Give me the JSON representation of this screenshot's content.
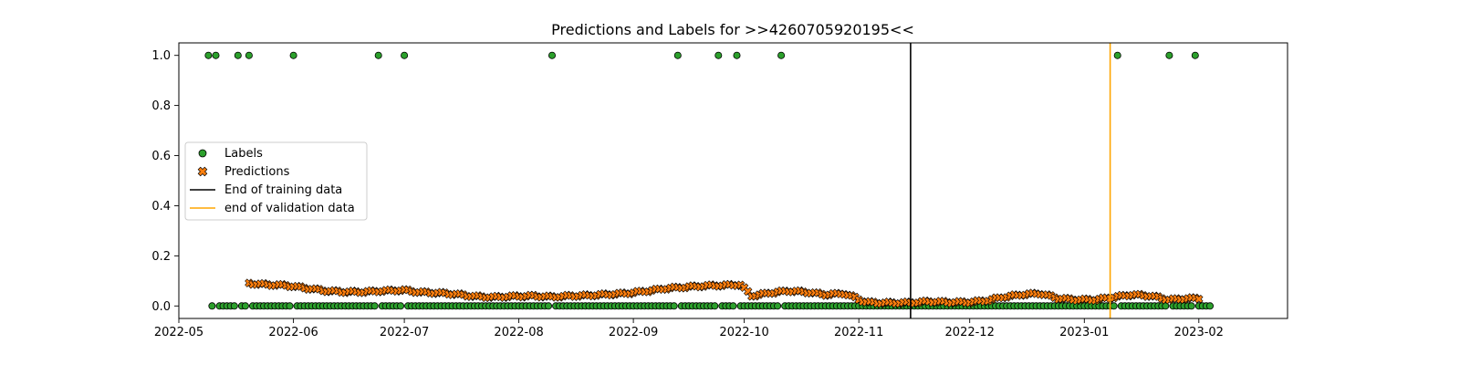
{
  "chart_data": {
    "type": "scatter",
    "title": "Predictions and Labels for >>4260705920195<<",
    "xlabel": "",
    "ylabel": "",
    "xlim": [
      "2022-05-01",
      "2023-02-25"
    ],
    "ylim": [
      -0.05,
      1.05
    ],
    "x_ticks": [
      "2022-05",
      "2022-06",
      "2022-07",
      "2022-08",
      "2022-09",
      "2022-10",
      "2022-11",
      "2022-12",
      "2023-01",
      "2023-02"
    ],
    "y_ticks": [
      "0.0",
      "0.2",
      "0.4",
      "0.6",
      "0.8",
      "1.0"
    ],
    "grid": false,
    "legend_position": "center-left",
    "series": [
      {
        "name": "Labels",
        "marker": "circle",
        "color": "#2ca02c",
        "edge_color": "#000000",
        "date_range": [
          "2022-05-10",
          "2023-02-04"
        ],
        "baseline_value": 0.0,
        "positive_dates": [
          "2022-05-09",
          "2022-05-11",
          "2022-05-17",
          "2022-05-20",
          "2022-06-01",
          "2022-06-24",
          "2022-07-01",
          "2022-08-10",
          "2022-09-13",
          "2022-09-24",
          "2022-09-29",
          "2022-10-11",
          "2023-01-10",
          "2023-01-24",
          "2023-01-31"
        ]
      },
      {
        "name": "Predictions",
        "marker": "x-filled",
        "color": "#ff7f0e",
        "edge_color": "#000000",
        "points": [
          [
            "2022-05-20",
            0.09
          ],
          [
            "2022-05-25",
            0.085
          ],
          [
            "2022-05-30",
            0.082
          ],
          [
            "2022-06-05",
            0.07
          ],
          [
            "2022-06-10",
            0.06
          ],
          [
            "2022-06-15",
            0.056
          ],
          [
            "2022-06-20",
            0.056
          ],
          [
            "2022-06-25",
            0.06
          ],
          [
            "2022-07-01",
            0.063
          ],
          [
            "2022-07-05",
            0.055
          ],
          [
            "2022-07-10",
            0.052
          ],
          [
            "2022-07-15",
            0.047
          ],
          [
            "2022-07-20",
            0.038
          ],
          [
            "2022-07-25",
            0.035
          ],
          [
            "2022-07-30",
            0.038
          ],
          [
            "2022-08-05",
            0.04
          ],
          [
            "2022-08-10",
            0.036
          ],
          [
            "2022-08-15",
            0.04
          ],
          [
            "2022-08-20",
            0.042
          ],
          [
            "2022-08-25",
            0.046
          ],
          [
            "2022-08-30",
            0.05
          ],
          [
            "2022-09-05",
            0.06
          ],
          [
            "2022-09-10",
            0.07
          ],
          [
            "2022-09-15",
            0.075
          ],
          [
            "2022-09-20",
            0.08
          ],
          [
            "2022-09-25",
            0.082
          ],
          [
            "2022-09-30",
            0.085
          ],
          [
            "2022-10-03",
            0.04
          ],
          [
            "2022-10-08",
            0.052
          ],
          [
            "2022-10-13",
            0.06
          ],
          [
            "2022-10-18",
            0.055
          ],
          [
            "2022-10-23",
            0.045
          ],
          [
            "2022-10-28",
            0.05
          ],
          [
            "2022-11-03",
            0.015
          ],
          [
            "2022-11-08",
            0.012
          ],
          [
            "2022-11-15",
            0.013
          ],
          [
            "2022-11-20",
            0.018
          ],
          [
            "2022-11-25",
            0.015
          ],
          [
            "2022-11-30",
            0.015
          ],
          [
            "2022-12-05",
            0.02
          ],
          [
            "2022-12-10",
            0.035
          ],
          [
            "2022-12-15",
            0.045
          ],
          [
            "2022-12-20",
            0.05
          ],
          [
            "2022-12-25",
            0.03
          ],
          [
            "2022-12-30",
            0.025
          ],
          [
            "2023-01-04",
            0.025
          ],
          [
            "2023-01-09",
            0.035
          ],
          [
            "2023-01-14",
            0.045
          ],
          [
            "2023-01-19",
            0.04
          ],
          [
            "2023-01-24",
            0.025
          ],
          [
            "2023-01-29",
            0.03
          ],
          [
            "2023-02-01",
            0.03
          ]
        ]
      }
    ],
    "vertical_lines": [
      {
        "name": "End of training data",
        "date": "2022-11-15",
        "color": "#000000"
      },
      {
        "name": "end of validation data",
        "date": "2023-01-08",
        "color": "#ffa500"
      }
    ]
  }
}
